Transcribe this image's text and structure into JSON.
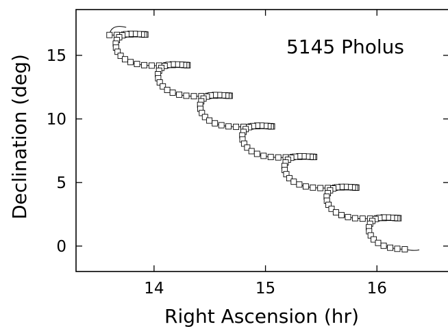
{
  "chart_data": {
    "type": "scatter",
    "title": "5145 Pholus",
    "xlabel": "Right Ascension (hr)",
    "ylabel": "Declination (deg)",
    "xlim": [
      13.3,
      16.65
    ],
    "ylim": [
      -2,
      18.6
    ],
    "xticks": [
      14,
      15,
      16
    ],
    "yticks": [
      0,
      5,
      10,
      15
    ],
    "xtick_labels": [
      "14",
      "15",
      "16"
    ],
    "ytick_labels": [
      "0",
      "5",
      "10",
      "15"
    ],
    "grid": false,
    "legend": "none",
    "track": {
      "start": [
        13.6,
        16.6
      ],
      "end": [
        16.25,
        -0.25
      ],
      "tail_start": [
        13.75,
        17.2
      ],
      "tail_end": [
        16.38,
        -0.3
      ],
      "loop_count": 7,
      "loop_ra_amplitude": 0.44,
      "loop_dec_amplitude": 1.3,
      "loop_dec_offset": 2.2
    },
    "series": [
      {
        "markers": "open squares",
        "count": 183
      }
    ]
  }
}
